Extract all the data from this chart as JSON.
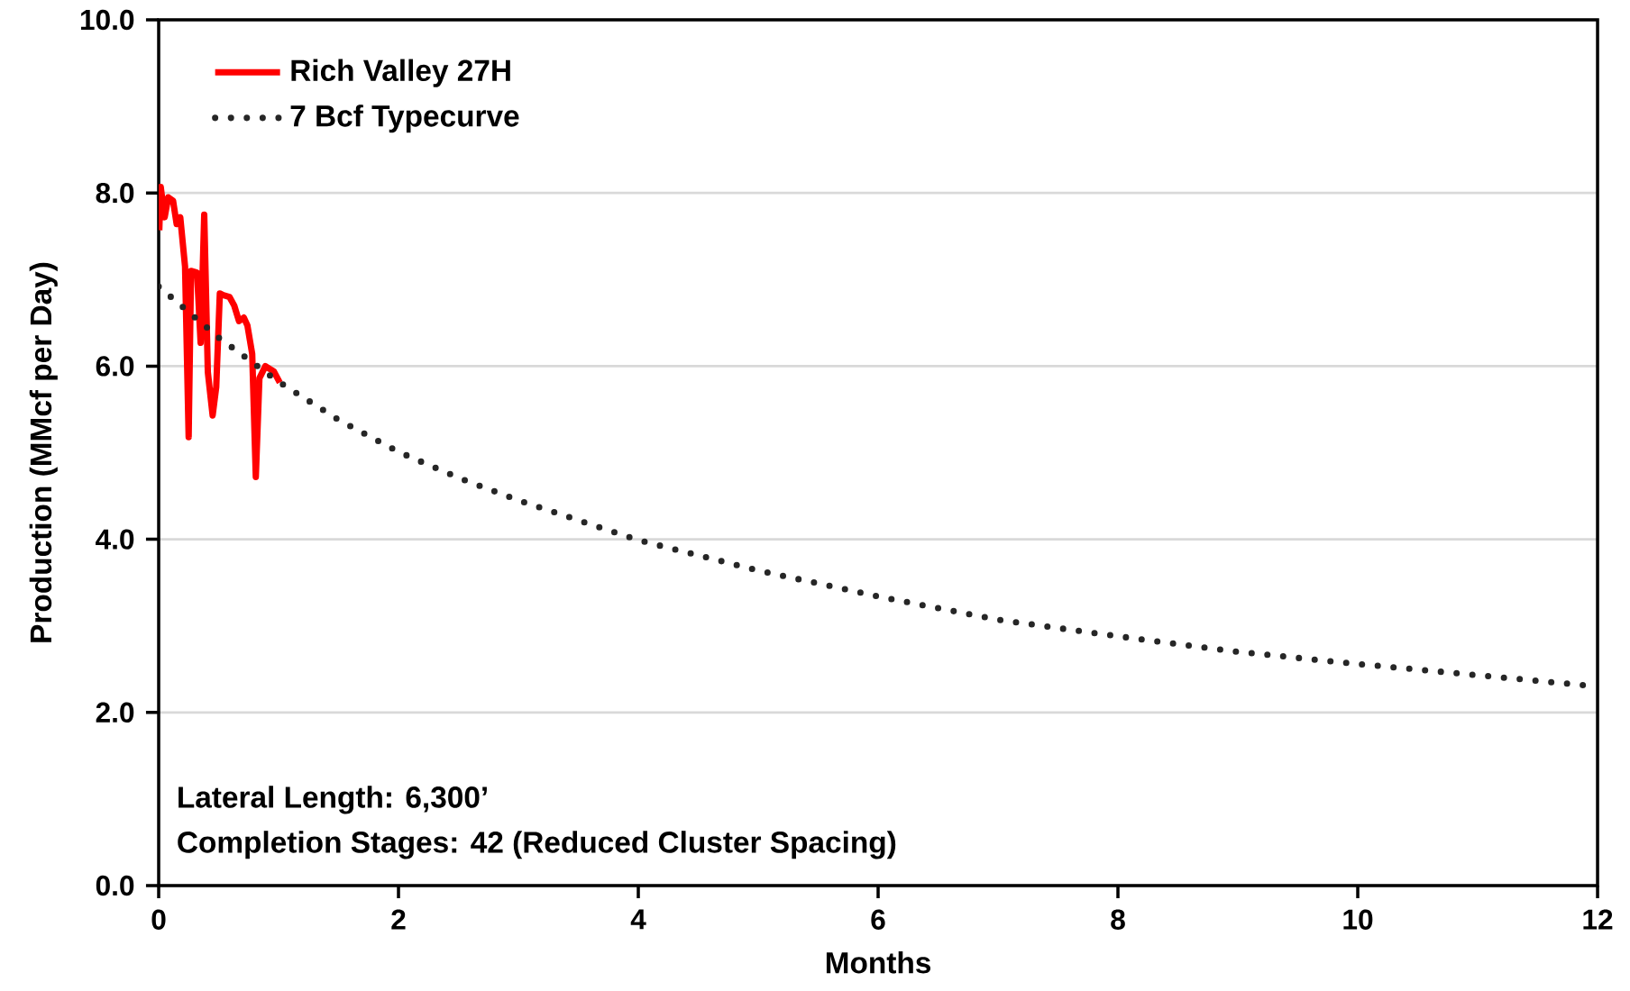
{
  "chart_data": {
    "type": "line",
    "xlabel": "Months",
    "ylabel": "Production (MMcf per Day)",
    "xlim": [
      0,
      12
    ],
    "ylim": [
      0,
      10
    ],
    "xticks": [
      0,
      2,
      4,
      6,
      8,
      10,
      12
    ],
    "yticks": [
      {
        "value": 0,
        "label": "0.0"
      },
      {
        "value": 2,
        "label": "2.0"
      },
      {
        "value": 4,
        "label": "4.0"
      },
      {
        "value": 6,
        "label": "6.0"
      },
      {
        "value": 8,
        "label": "8.0"
      },
      {
        "value": 10,
        "label": "10.0"
      }
    ],
    "grid": "y",
    "legend": "top left",
    "series": [
      {
        "name": "Rich Valley 27H",
        "color": "#ff0000",
        "line_style": "solid",
        "x": [
          0.005,
          0.017,
          0.05,
          0.08,
          0.12,
          0.15,
          0.18,
          0.22,
          0.25,
          0.27,
          0.32,
          0.35,
          0.38,
          0.41,
          0.45,
          0.48,
          0.51,
          0.54,
          0.59,
          0.63,
          0.67,
          0.71,
          0.74,
          0.78,
          0.81,
          0.84,
          0.89,
          0.96,
          1.01
        ],
        "values": [
          7.57,
          8.07,
          7.72,
          7.95,
          7.91,
          7.64,
          7.72,
          7.15,
          5.18,
          7.1,
          7.08,
          6.27,
          7.75,
          5.93,
          5.43,
          5.76,
          6.84,
          6.82,
          6.8,
          6.7,
          6.52,
          6.56,
          6.47,
          6.14,
          4.72,
          5.86,
          6.0,
          5.94,
          5.81
        ]
      },
      {
        "name": "7 Bcf Typecurve",
        "color": "#262626",
        "line_style": "dotted",
        "x": [
          0,
          0.5,
          1,
          1.5,
          2,
          2.5,
          3,
          4,
          5,
          6,
          7,
          8,
          9,
          10,
          11,
          12
        ],
        "values": [
          6.92,
          6.33,
          5.82,
          5.38,
          5.01,
          4.71,
          4.45,
          3.99,
          3.64,
          3.34,
          3.07,
          2.88,
          2.7,
          2.56,
          2.43,
          2.3
        ]
      }
    ],
    "annotations": [
      "Lateral Length: 6,300’",
      "Completion Stages: 42 (Reduced Cluster Spacing)"
    ]
  }
}
